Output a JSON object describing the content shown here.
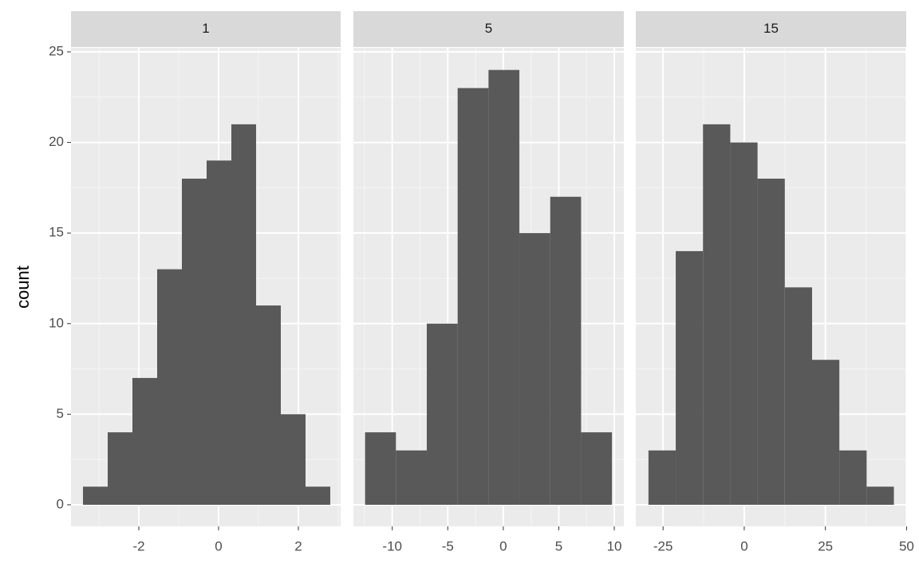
{
  "chart_data": [
    {
      "type": "histogram",
      "title": "1",
      "ylabel": "count",
      "color": "#595959",
      "bins": [
        -3.4,
        -2.78,
        -2.16,
        -1.54,
        -0.92,
        -0.3,
        0.32,
        0.94,
        1.56,
        2.18,
        2.8
      ],
      "values": [
        1,
        4,
        7,
        13,
        18,
        19,
        21,
        11,
        5,
        1
      ],
      "xlim": [
        -3.7,
        3.06
      ],
      "xticks": [
        -2,
        0,
        2
      ],
      "ylim": [
        -1.19,
        25.22
      ],
      "yticks": [
        0,
        5,
        10,
        15,
        20,
        25
      ],
      "grid": true
    },
    {
      "type": "histogram",
      "title": "5",
      "color": "#595959",
      "bins": [
        -12.45,
        -9.67,
        -6.89,
        -4.11,
        -1.33,
        1.45,
        4.23,
        7.01,
        9.79
      ],
      "values": [
        4,
        3,
        10,
        23,
        24,
        15,
        17,
        4
      ],
      "xlim": [
        -13.5,
        10.86
      ],
      "xticks": [
        -10,
        -5,
        0,
        5,
        10
      ],
      "ylim": [
        -1.19,
        25.22
      ],
      "yticks": [
        0,
        5,
        10,
        15,
        20,
        25
      ],
      "grid": true
    },
    {
      "type": "histogram",
      "title": "15",
      "color": "#595959",
      "bins": [
        -29.5,
        -21.1,
        -12.7,
        -4.3,
        4.1,
        12.5,
        20.9,
        29.3,
        37.7,
        46.1
      ],
      "values": [
        3,
        14,
        21,
        20,
        18,
        12,
        8,
        3,
        1
      ],
      "xlim": [
        -33.4,
        49.9
      ],
      "xticks": [
        -25,
        0,
        25,
        50
      ],
      "ylim": [
        -1.19,
        25.22
      ],
      "yticks": [
        0,
        5,
        10,
        15,
        20,
        25
      ],
      "grid": true
    }
  ]
}
